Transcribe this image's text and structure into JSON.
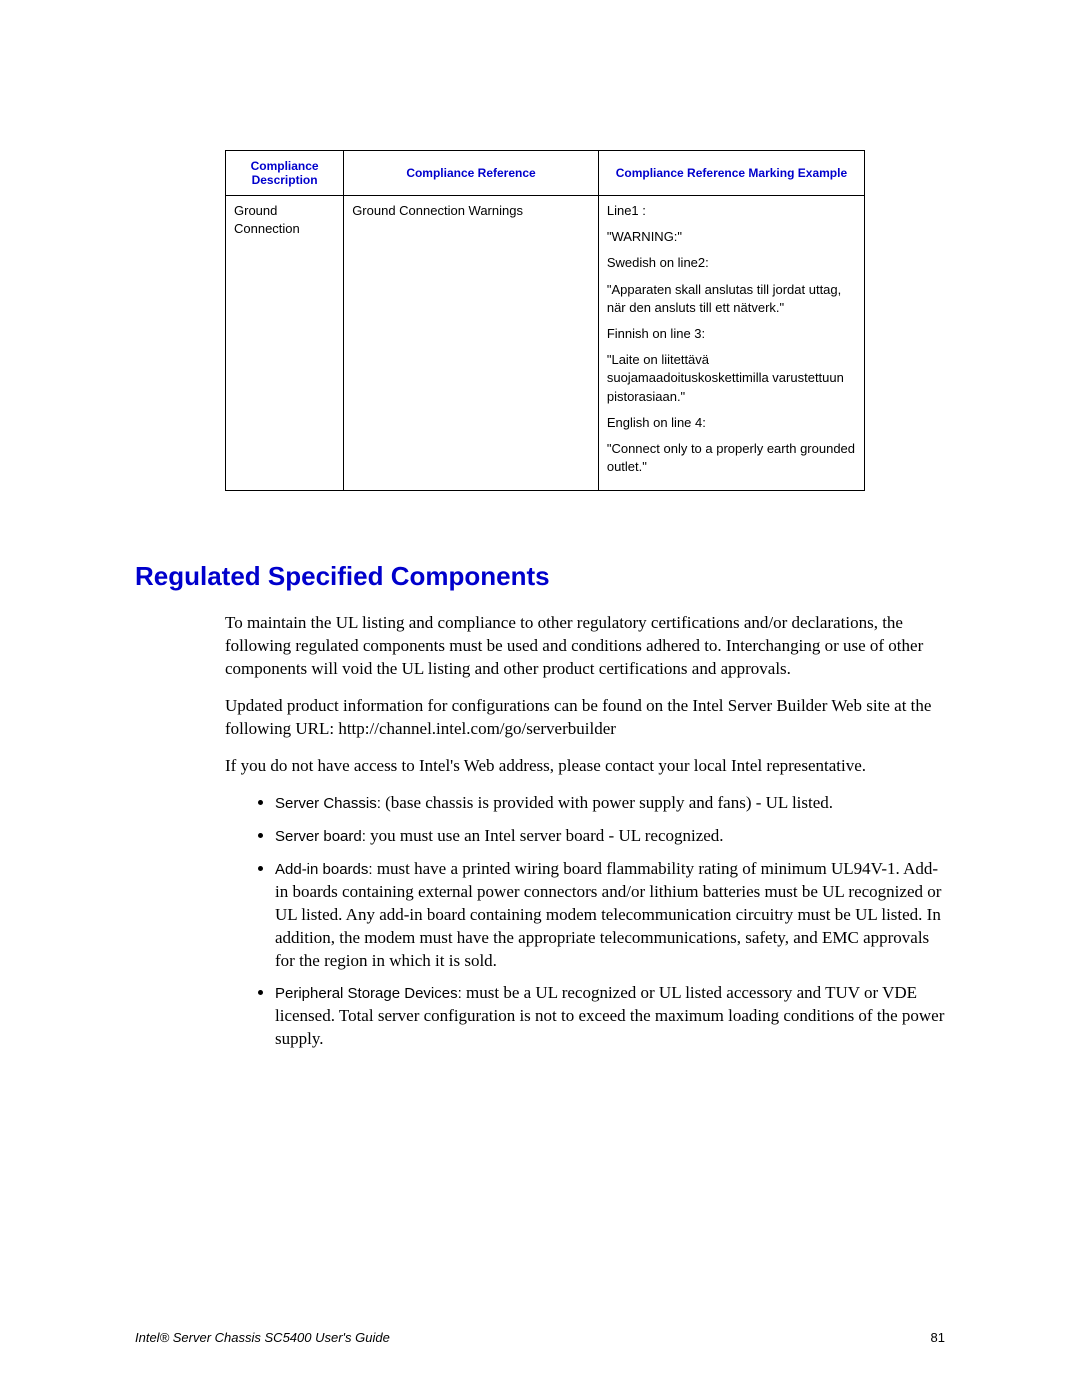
{
  "table": {
    "headers": {
      "col1": "Compliance Description",
      "col2": "Compliance Reference",
      "col3": "Compliance Reference Marking Example"
    },
    "row": {
      "description": "Ground Connection",
      "reference": "Ground Connection Warnings",
      "marking": {
        "l1": "Line1 :",
        "l2": "\"WARNING:\"",
        "l3": "Swedish on line2:",
        "l4": "\"Apparaten skall anslutas till jordat uttag, när den ansluts till ett nätverk.\"",
        "l5": "Finnish on line 3:",
        "l6": "\"Laite on liitettävä suojamaadoituskoskettimilla varustettuun pistorasiaan.\"",
        "l7": "English on line 4:",
        "l8": "\"Connect only to a properly earth grounded outlet.\""
      }
    }
  },
  "section": {
    "heading": "Regulated Specified Components",
    "p1": "To maintain the UL listing and compliance to other regulatory certifications and/or declarations, the following regulated components must be used and conditions adhered to. Interchanging or use of other components will void the UL listing and other product certifications and approvals.",
    "p2": "Updated product information for configurations can be found on the Intel Server Builder Web site at the following URL: http://channel.intel.com/go/serverbuilder",
    "p3": "If you do not have access to Intel's Web address, please contact your local Intel representative.",
    "items": {
      "i1_label": "Server Chassis:",
      "i1_text": " (base chassis is provided with power supply and fans) - UL listed.",
      "i2_label": "Server board:",
      "i2_text": " you must use an Intel server board - UL recognized.",
      "i3_label": "Add-in boards:",
      "i3_text": " must have a printed wiring board flammability rating of minimum UL94V-1. Add-in boards containing external power connectors and/or lithium batteries must be UL recognized or UL listed. Any add-in board containing modem telecommunication circuitry must be UL listed. In addition, the modem must have the appropriate telecommunications, safety, and EMC approvals for the region in which it is sold.",
      "i4_label": "Peripheral Storage Devices:",
      "i4_text": " must be a UL recognized or UL listed accessory and TUV or VDE licensed. Total server configuration is not to exceed the maximum loading conditions of the power supply."
    }
  },
  "footer": {
    "title": "Intel® Server Chassis SC5400 User's Guide",
    "page": "81"
  }
}
